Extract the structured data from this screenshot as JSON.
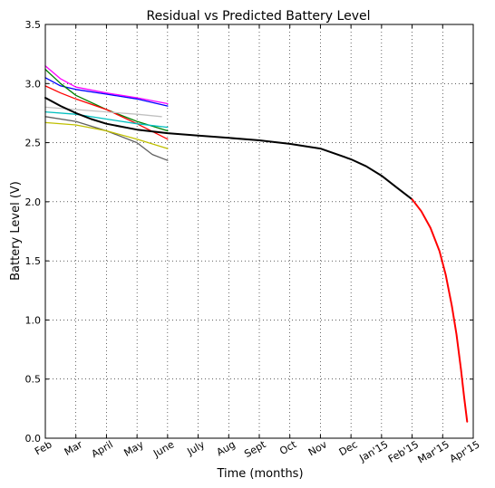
{
  "chart_data": {
    "type": "line",
    "title": "Residual vs Predicted Battery Level",
    "xlabel": "Time (months)",
    "ylabel": "Battery Level (V)",
    "x_ticks": [
      "Feb",
      "Mar",
      "April",
      "May",
      "June",
      "July",
      "Aug",
      "Sept",
      "Oct",
      "Nov",
      "Dec",
      "Jan'15",
      "Feb'15",
      "Mar'15",
      "Apr'15"
    ],
    "xlim": [
      0,
      14
    ],
    "ylim": [
      0,
      3.5
    ],
    "y_ticks": [
      0.0,
      0.5,
      1.0,
      1.5,
      2.0,
      2.5,
      3.0,
      3.5
    ],
    "y_tick_labels": [
      "0.0",
      "0.5",
      "1.0",
      "1.5",
      "2.0",
      "2.5",
      "3.0",
      "3.5"
    ],
    "grid": true,
    "series": [
      {
        "color": "#ff00ff",
        "x": [
          0,
          0.5,
          1,
          2,
          3,
          4
        ],
        "y": [
          3.15,
          3.04,
          2.97,
          2.92,
          2.88,
          2.83
        ]
      },
      {
        "color": "#0000ff",
        "x": [
          0,
          0.5,
          1,
          2,
          3,
          4
        ],
        "y": [
          3.05,
          2.98,
          2.95,
          2.91,
          2.87,
          2.81
        ]
      },
      {
        "color": "#008000",
        "x": [
          0,
          0.5,
          1,
          2,
          3,
          4
        ],
        "y": [
          3.12,
          3.0,
          2.9,
          2.78,
          2.68,
          2.6
        ]
      },
      {
        "color": "#ff0000",
        "x": [
          0,
          0.5,
          1,
          2,
          3,
          4
        ],
        "y": [
          2.98,
          2.92,
          2.87,
          2.78,
          2.66,
          2.53
        ]
      },
      {
        "color": "#c0c0c0",
        "x": [
          0,
          1,
          2,
          3,
          3.8
        ],
        "y": [
          2.8,
          2.78,
          2.76,
          2.74,
          2.72
        ]
      },
      {
        "color": "#00bfbf",
        "x": [
          0,
          1,
          2,
          3,
          4
        ],
        "y": [
          2.76,
          2.74,
          2.7,
          2.66,
          2.63
        ]
      },
      {
        "color": "#606060",
        "x": [
          0,
          1,
          2,
          3,
          3.5,
          4
        ],
        "y": [
          2.72,
          2.68,
          2.6,
          2.5,
          2.4,
          2.35
        ]
      },
      {
        "color": "#bfbf00",
        "x": [
          0,
          1,
          2,
          3,
          4
        ],
        "y": [
          2.67,
          2.65,
          2.6,
          2.53,
          2.45
        ]
      },
      {
        "color": "#000000",
        "x": [
          0,
          0.5,
          1,
          1.5,
          2,
          3,
          4,
          5,
          6,
          7,
          8,
          9,
          10,
          10.5,
          11,
          11.5,
          12
        ],
        "y": [
          2.88,
          2.81,
          2.75,
          2.7,
          2.66,
          2.61,
          2.58,
          2.56,
          2.54,
          2.52,
          2.49,
          2.45,
          2.36,
          2.3,
          2.22,
          2.12,
          2.02
        ]
      },
      {
        "color": "#ff0000",
        "x": [
          12,
          12.3,
          12.6,
          12.9,
          13.1,
          13.3,
          13.45,
          13.6,
          13.7,
          13.8
        ],
        "y": [
          2.02,
          1.92,
          1.78,
          1.58,
          1.38,
          1.12,
          0.88,
          0.58,
          0.35,
          0.14
        ]
      }
    ]
  }
}
